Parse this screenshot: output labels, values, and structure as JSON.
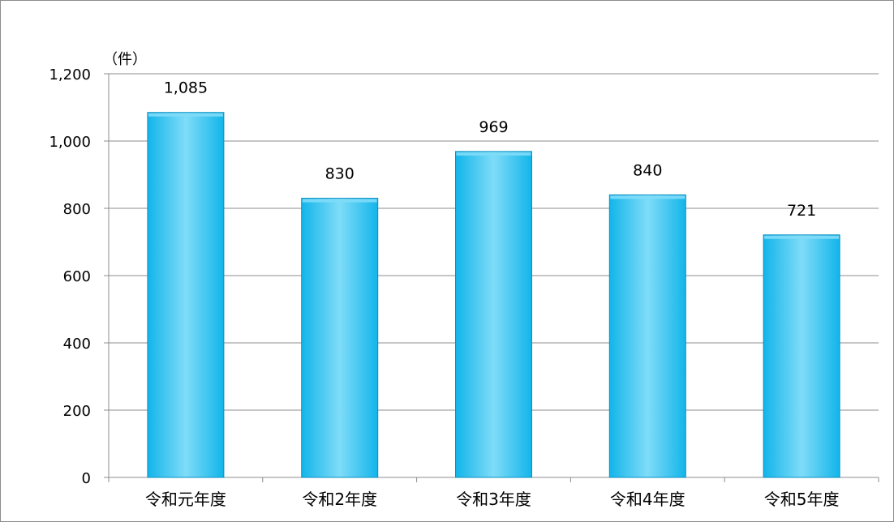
{
  "chart_data": {
    "type": "bar",
    "categories": [
      "令和元年度",
      "令和2年度",
      "令和3年度",
      "令和4年度",
      "令和5年度"
    ],
    "values": [
      1085,
      830,
      969,
      840,
      721
    ],
    "data_labels": [
      "1,085",
      "830",
      "969",
      "840",
      "721"
    ],
    "y_unit": "（件）",
    "ylim": [
      0,
      1200
    ],
    "yticks": [
      0,
      200,
      400,
      600,
      800,
      1000,
      1200
    ],
    "ytick_labels": [
      "0",
      "200",
      "400",
      "600",
      "800",
      "1,000",
      "1,200"
    ],
    "grid": true,
    "legend": "none",
    "colors": {
      "bar_fill": "#12b5ea",
      "bar_highlight": "#7fdcf8",
      "bar_edge": "#0a8fc2",
      "gridline": "#8c8c8c",
      "axis": "#8c8c8c",
      "frame": "#8c8c8c"
    }
  }
}
